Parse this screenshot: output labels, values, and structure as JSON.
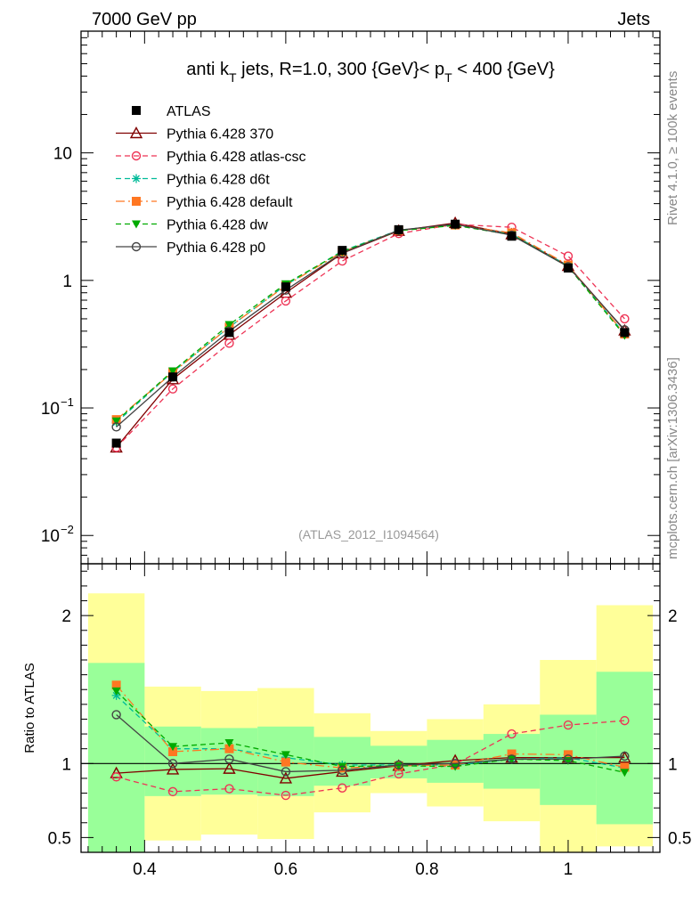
{
  "header": {
    "left": "7000 GeV pp",
    "right": "Jets"
  },
  "side_labels": {
    "rivet": "Rivet 4.1.0, ≥ 100k events",
    "mcplots": "mcplots.cern.ch [arXiv:1306.3436]"
  },
  "chart_data": {
    "type": "line",
    "title_parts": {
      "pre": "anti k",
      "sub1": "T",
      "mid": " jets, R=1.0,  300 {GeV}< p",
      "sub2": "T",
      "post": " < 400 {GeV}"
    },
    "analysis_id": "(ATLAS_2012_I1094564)",
    "x": [
      0.36,
      0.44,
      0.52,
      0.6,
      0.68,
      0.76,
      0.84,
      0.92,
      1.0,
      1.08
    ],
    "x_bin_edges": [
      0.32,
      0.4,
      0.48,
      0.56,
      0.64,
      0.72,
      0.8,
      0.88,
      0.96,
      1.04,
      1.12
    ],
    "xlim": [
      0.31,
      1.13
    ],
    "x_ticks": [
      "0.4",
      "0.6",
      "0.8",
      "1"
    ],
    "main": {
      "yscale": "log",
      "ylim": [
        0.006,
        90
      ],
      "y_ticks": [
        {
          "value": 10,
          "base": "10",
          "exp": ""
        },
        {
          "value": 1,
          "base": "1",
          "exp": ""
        },
        {
          "value": 0.1,
          "base": "10",
          "exp": "−1"
        },
        {
          "value": 0.01,
          "base": "10",
          "exp": "−2"
        }
      ]
    },
    "ratio": {
      "ylabel": "Ratio to ATLAS",
      "ylim": [
        0.4,
        2.35
      ],
      "y_ticks": [
        {
          "value": 2,
          "label": "2"
        },
        {
          "value": 1,
          "label": "1"
        },
        {
          "value": 0.5,
          "label": "0.5"
        }
      ],
      "band_green": [
        [
          0.32,
          1.68
        ],
        [
          0.78,
          1.25
        ],
        [
          0.79,
          1.24
        ],
        [
          0.78,
          1.25
        ],
        [
          0.85,
          1.18
        ],
        [
          0.9,
          1.12
        ],
        [
          0.87,
          1.16
        ],
        [
          0.83,
          1.2
        ],
        [
          0.72,
          1.33
        ],
        [
          0.59,
          1.62
        ]
      ],
      "band_yellow": [
        [
          0.32,
          2.15
        ],
        [
          0.48,
          1.52
        ],
        [
          0.52,
          1.49
        ],
        [
          0.49,
          1.51
        ],
        [
          0.67,
          1.34
        ],
        [
          0.8,
          1.22
        ],
        [
          0.71,
          1.3
        ],
        [
          0.61,
          1.4
        ],
        [
          0.37,
          1.7
        ],
        [
          0.44,
          2.07
        ]
      ]
    },
    "series": [
      {
        "name": "ATLAS",
        "color": "#000000",
        "marker": "square",
        "dash": "",
        "is_data": true,
        "values": [
          0.053,
          0.175,
          0.39,
          0.89,
          1.72,
          2.5,
          2.76,
          2.22,
          1.25,
          0.39
        ]
      },
      {
        "name": "Pythia 6.428 370",
        "color": "#800000",
        "marker": "triangle",
        "dash": "",
        "values": [
          0.049,
          0.168,
          0.375,
          0.8,
          1.63,
          2.45,
          2.82,
          2.3,
          1.3,
          0.405
        ],
        "ratio": [
          0.935,
          0.96,
          0.965,
          0.9,
          0.945,
          0.985,
          1.02,
          1.04,
          1.04,
          1.04
        ]
      },
      {
        "name": "Pythia 6.428 atlas-csc",
        "color": "#ee3355",
        "marker": "circle",
        "dash": "6,4",
        "values": [
          0.049,
          0.141,
          0.322,
          0.69,
          1.42,
          2.33,
          2.75,
          2.61,
          1.55,
          0.5
        ],
        "ratio": [
          0.91,
          0.81,
          0.83,
          0.785,
          0.835,
          0.93,
          0.995,
          1.2,
          1.26,
          1.29
        ]
      },
      {
        "name": "Pythia 6.428 d6t",
        "color": "#00bb99",
        "marker": "star",
        "dash": "6,4",
        "values": [
          0.077,
          0.192,
          0.43,
          0.92,
          1.7,
          2.48,
          2.73,
          2.3,
          1.3,
          0.38
        ],
        "ratio": [
          1.46,
          1.1,
          1.1,
          1.04,
          0.99,
          0.99,
          0.99,
          1.03,
          1.04,
          0.97
        ]
      },
      {
        "name": "Pythia 6.428 default",
        "color": "#ff7722",
        "marker": "square",
        "dash": "10,4,2,4",
        "values": [
          0.081,
          0.19,
          0.43,
          0.91,
          1.67,
          2.47,
          2.72,
          2.36,
          1.32,
          0.38
        ],
        "ratio": [
          1.53,
          1.08,
          1.1,
          1.01,
          0.97,
          0.985,
          0.99,
          1.065,
          1.06,
          0.975
        ]
      },
      {
        "name": "Pythia 6.428 dw",
        "color": "#00aa00",
        "marker": "triangle-down",
        "dash": "6,4",
        "values": [
          0.079,
          0.195,
          0.45,
          0.94,
          1.68,
          2.45,
          2.7,
          2.28,
          1.28,
          0.37
        ],
        "ratio": [
          1.49,
          1.115,
          1.14,
          1.06,
          0.98,
          0.985,
          0.98,
          1.03,
          1.02,
          0.94
        ]
      },
      {
        "name": "Pythia 6.428 p0",
        "color": "#444444",
        "marker": "circle",
        "dash": "",
        "values": [
          0.071,
          0.175,
          0.4,
          0.84,
          1.64,
          2.48,
          2.76,
          2.26,
          1.28,
          0.41
        ],
        "ratio": [
          1.33,
          1.0,
          1.03,
          0.945,
          0.955,
          0.99,
          1.0,
          1.03,
          1.03,
          1.05
        ]
      }
    ]
  }
}
